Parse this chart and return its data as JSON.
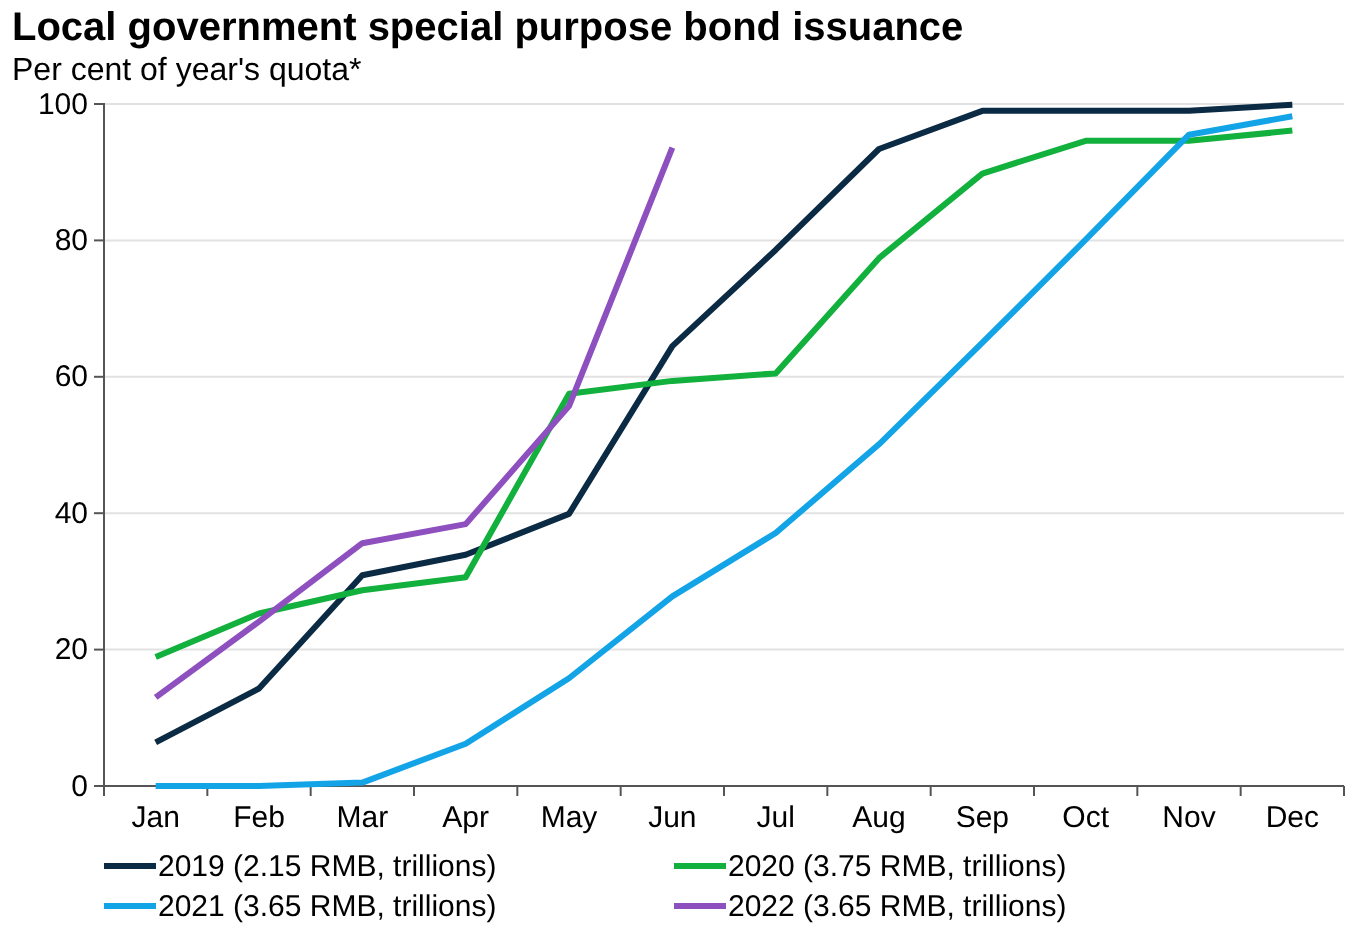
{
  "chart_data": {
    "type": "line",
    "title": "Local government special purpose bond issuance",
    "subtitle": "Per cent of year's quota*",
    "categories": [
      "Jan",
      "Feb",
      "Mar",
      "Apr",
      "May",
      "Jun",
      "Jul",
      "Aug",
      "Sep",
      "Oct",
      "Nov",
      "Dec"
    ],
    "series": [
      {
        "name": "2019 (2.15 RMB, trillions)",
        "color": "#0b2a44",
        "values": [
          6.4,
          14.3,
          30.9,
          33.9,
          39.9,
          64.5,
          78.6,
          93.4,
          99,
          99,
          99,
          99.9
        ]
      },
      {
        "name": "2020 (3.75 RMB, trillions)",
        "color": "#12b03c",
        "values": [
          18.9,
          25.3,
          28.7,
          30.6,
          57.5,
          59.4,
          60.5,
          77.4,
          89.8,
          94.6,
          94.6,
          96.1
        ]
      },
      {
        "name": "2021 (3.65 RMB, trillions)",
        "color": "#12a4e6",
        "values": [
          0,
          0,
          0.5,
          6.2,
          15.8,
          27.8,
          37.1,
          50.1,
          65,
          80.1,
          95.5,
          98.2
        ]
      },
      {
        "name": "2022 (3.65 RMB, trillions)",
        "color": "#8e4fbf",
        "values": [
          13,
          24.1,
          35.6,
          38.4,
          55.7,
          93.6,
          null,
          null,
          null,
          null,
          null,
          null
        ]
      }
    ],
    "ylim": [
      0,
      100
    ],
    "yticks": [
      0,
      20,
      40,
      60,
      80,
      100
    ],
    "grid": "y",
    "legend": "bottom",
    "line_style": "solid",
    "marker": "none"
  }
}
